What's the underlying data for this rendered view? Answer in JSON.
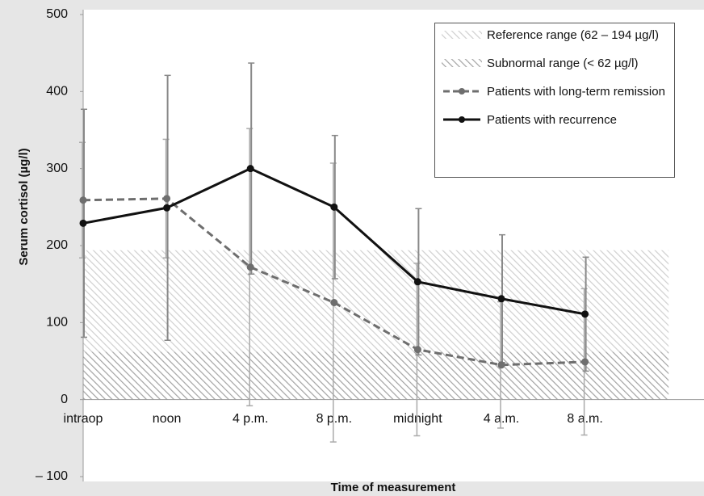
{
  "chart_data": {
    "type": "line",
    "ylabel": "Serum cortisol (µg/l)",
    "xlabel": "Time of measurement",
    "categories": [
      "intraop",
      "noon",
      "4 p.m.",
      "8 p.m.",
      "midnight",
      "4 a.m.",
      "8 a.m."
    ],
    "ylim": [
      -100,
      500
    ],
    "yticks": [
      {
        "value": -100,
        "label": "– 100"
      },
      0,
      100,
      200,
      300,
      400,
      500
    ],
    "grid": false,
    "bands": [
      {
        "name": "Reference range (62 – 194 µg/l)",
        "from": 62,
        "to": 194,
        "color": "#cfcfcf"
      },
      {
        "name": "Subnormal range (< 62 µg/l)",
        "from": 0,
        "to": 62,
        "color": "#a3a3a3"
      }
    ],
    "series": [
      {
        "name": "Patients with long-term remission",
        "color": "#6e6e6e",
        "dash": true,
        "values": [
          259,
          261,
          172,
          126,
          65,
          45,
          49
        ],
        "errors": [
          75,
          77,
          180,
          181,
          112,
          82,
          95
        ]
      },
      {
        "name": "Patients with recurrence",
        "color": "#111111",
        "dash": false,
        "values": [
          229,
          249,
          300,
          250,
          153,
          131,
          111
        ],
        "errors": [
          148,
          172,
          137,
          93,
          95,
          83,
          74
        ]
      }
    ]
  }
}
